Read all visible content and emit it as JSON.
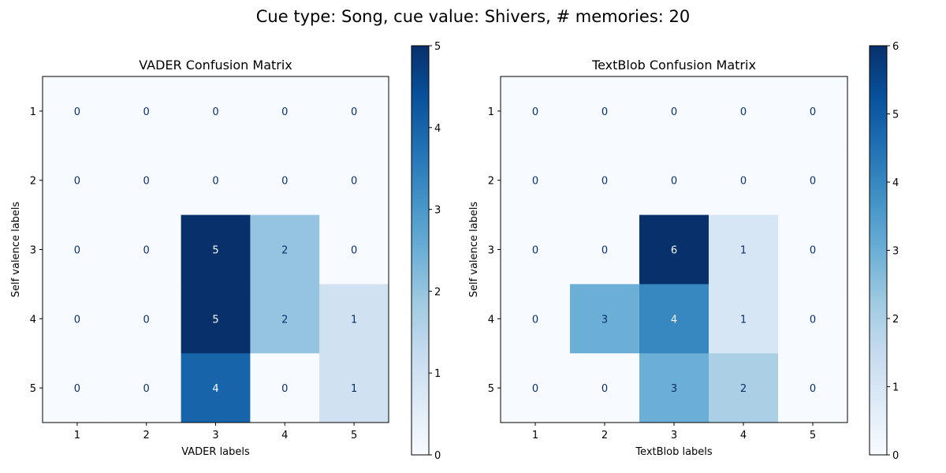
{
  "suptitle": "Cue type: Song, cue value: Shivers, # memories: 20",
  "chart_data": [
    {
      "type": "heatmap",
      "title": "VADER Confusion Matrix",
      "xlabel": "VADER labels",
      "ylabel": "Self valence labels",
      "x_categories": [
        "1",
        "2",
        "3",
        "4",
        "5"
      ],
      "y_categories": [
        "1",
        "2",
        "3",
        "4",
        "5"
      ],
      "values": [
        [
          0,
          0,
          0,
          0,
          0
        ],
        [
          0,
          0,
          0,
          0,
          0
        ],
        [
          0,
          0,
          5,
          2,
          0
        ],
        [
          0,
          0,
          5,
          2,
          1
        ],
        [
          0,
          0,
          4,
          0,
          1
        ]
      ],
      "colormap": "Blues",
      "colorbar": {
        "min": 0,
        "max": 5,
        "ticks": [
          "0",
          "1",
          "2",
          "3",
          "4",
          "5"
        ]
      }
    },
    {
      "type": "heatmap",
      "title": "TextBlob Confusion Matrix",
      "xlabel": "TextBlob labels",
      "ylabel": "Self valence labels",
      "x_categories": [
        "1",
        "2",
        "3",
        "4",
        "5"
      ],
      "y_categories": [
        "1",
        "2",
        "3",
        "4",
        "5"
      ],
      "values": [
        [
          0,
          0,
          0,
          0,
          0
        ],
        [
          0,
          0,
          0,
          0,
          0
        ],
        [
          0,
          0,
          6,
          1,
          0
        ],
        [
          0,
          3,
          4,
          1,
          0
        ],
        [
          0,
          0,
          3,
          2,
          0
        ]
      ],
      "colormap": "Blues",
      "colorbar": {
        "min": 0,
        "max": 6,
        "ticks": [
          "0",
          "1",
          "2",
          "3",
          "4",
          "5",
          "6"
        ]
      }
    }
  ]
}
